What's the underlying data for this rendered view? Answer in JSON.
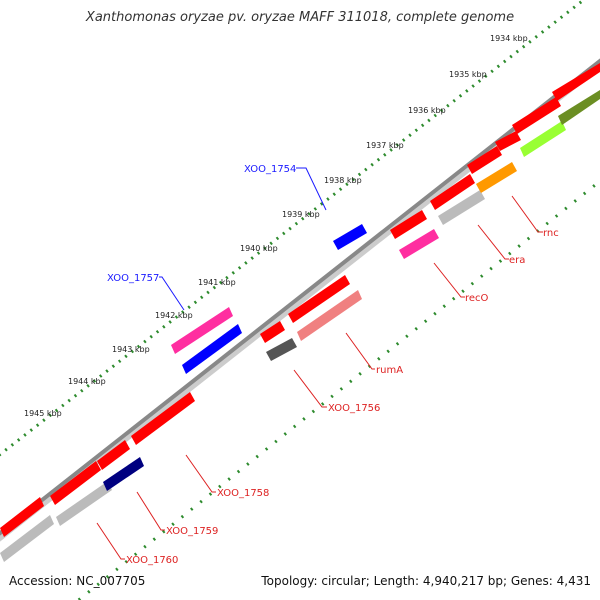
{
  "title": "Xanthomonas oryzae pv. oryzae MAFF 311018, complete genome",
  "footer": {
    "accession": "Accession: NC_007705",
    "stats": "Topology: circular; Length: 4,940,217 bp; Genes: 4,431"
  },
  "ticks": [
    "1934 kbp",
    "1935 kbp",
    "1936 kbp",
    "1937 kbp",
    "1938 kbp",
    "1939 kbp",
    "1940 kbp",
    "1941 kbp",
    "1942 kbp",
    "1943 kbp",
    "1944 kbp",
    "1945 kbp"
  ],
  "genes_outer": [
    {
      "name": "XOO_1754",
      "color": "#1a1aff"
    },
    {
      "name": "XOO_1757",
      "color": "#1a1aff"
    }
  ],
  "genes_inner": [
    {
      "name": "rnc",
      "color": "#dd2222"
    },
    {
      "name": "era",
      "color": "#dd2222"
    },
    {
      "name": "recO",
      "color": "#dd2222"
    },
    {
      "name": "rumA",
      "color": "#dd2222"
    },
    {
      "name": "XOO_1756",
      "color": "#dd2222"
    },
    {
      "name": "XOO_1758",
      "color": "#dd2222"
    },
    {
      "name": "XOO_1759",
      "color": "#dd2222"
    },
    {
      "name": "XOO_1760",
      "color": "#dd2222"
    }
  ],
  "colors": {
    "backbone": "#888888",
    "tick_green": "#2e8b2e",
    "cds_red": "#ff0000",
    "pink": "#ff2ea0",
    "blue": "#0000ff",
    "navy": "#000080",
    "grey": "#bbbbbb",
    "dark_grey": "#555555",
    "salmon": "#f08080",
    "orange": "#ff9900",
    "lime": "#99ff33",
    "olive": "#6b8e23"
  }
}
